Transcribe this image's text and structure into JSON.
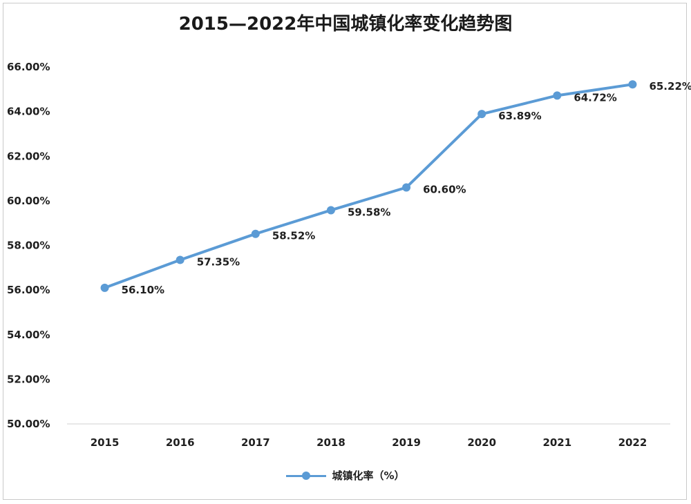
{
  "chart_data": {
    "type": "line",
    "title": "2015—2022年中国城镇化率变化趋势图",
    "categories": [
      "2015",
      "2016",
      "2017",
      "2018",
      "2019",
      "2020",
      "2021",
      "2022"
    ],
    "series": [
      {
        "name": "城镇化率（%）",
        "values": [
          56.1,
          57.35,
          58.52,
          59.58,
          60.6,
          63.89,
          64.72,
          65.22
        ],
        "labels": [
          "56.10%",
          "57.35%",
          "58.52%",
          "59.58%",
          "60.60%",
          "63.89%",
          "64.72%",
          "65.22%"
        ],
        "color": "#5b9bd5"
      }
    ],
    "yticks": [
      50,
      52,
      54,
      56,
      58,
      60,
      62,
      64,
      66
    ],
    "ytick_labels": [
      "50.00%",
      "52.00%",
      "54.00%",
      "56.00%",
      "58.00%",
      "60.00%",
      "62.00%",
      "64.00%",
      "66.00%"
    ],
    "ylim": [
      50,
      66
    ],
    "xlabel": "",
    "ylabel": "",
    "grid": false,
    "legend": "bottom"
  }
}
